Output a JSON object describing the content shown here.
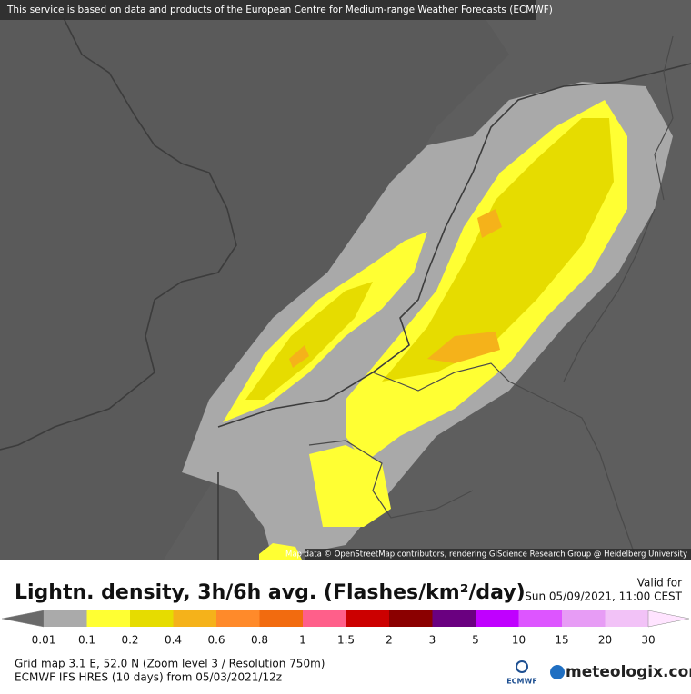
{
  "header": {
    "notice": "This service is based on data and products of the European Centre for Medium-range Weather Forecasts (ECMWF)"
  },
  "map": {
    "attribution": "Map data © OpenStreetMap contributors, rendering GIScience Research Group @ Heidelberg University"
  },
  "legend": {
    "title": "Lightn. density, 3h/6h avg. (Flashes/km²/day)",
    "valid_label": "Valid for",
    "valid_time": "Sun 05/09/2021, 11:00 CEST",
    "ticks": [
      0.01,
      0.1,
      0.2,
      0.4,
      0.6,
      0.8,
      1,
      1.5,
      2,
      3,
      5,
      10,
      15,
      20,
      30
    ],
    "colors": [
      "#6a6a6a",
      "#aaaaaa",
      "#ffff33",
      "#e6dc00",
      "#f5b21a",
      "#ff8a2a",
      "#f26b0f",
      "#ff5f8a",
      "#cc0000",
      "#8b0000",
      "#6a0080",
      "#c000ff",
      "#dd55ff",
      "#e79cf5",
      "#f2c2f7",
      "#ffe4ff"
    ]
  },
  "footer": {
    "grid_info": "Grid map 3.1 E, 52.0 N (Zoom level 3 / Resolution 750m)",
    "model_info": "ECMWF IFS HRES (10 days) from 05/03/2021/12z",
    "ecmwf_logo": "ECMWF",
    "brand": "meteologix.com"
  }
}
